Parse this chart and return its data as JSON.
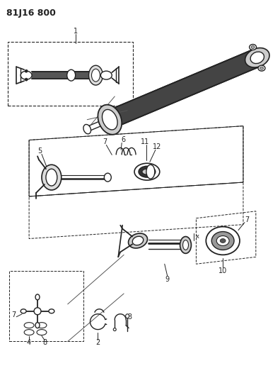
{
  "title": "81J16 800",
  "bg_color": "#ffffff",
  "line_color": "#222222",
  "title_fontsize": 9,
  "label_fontsize": 7,
  "fig_width": 3.96,
  "fig_height": 5.33,
  "dpi": 100
}
